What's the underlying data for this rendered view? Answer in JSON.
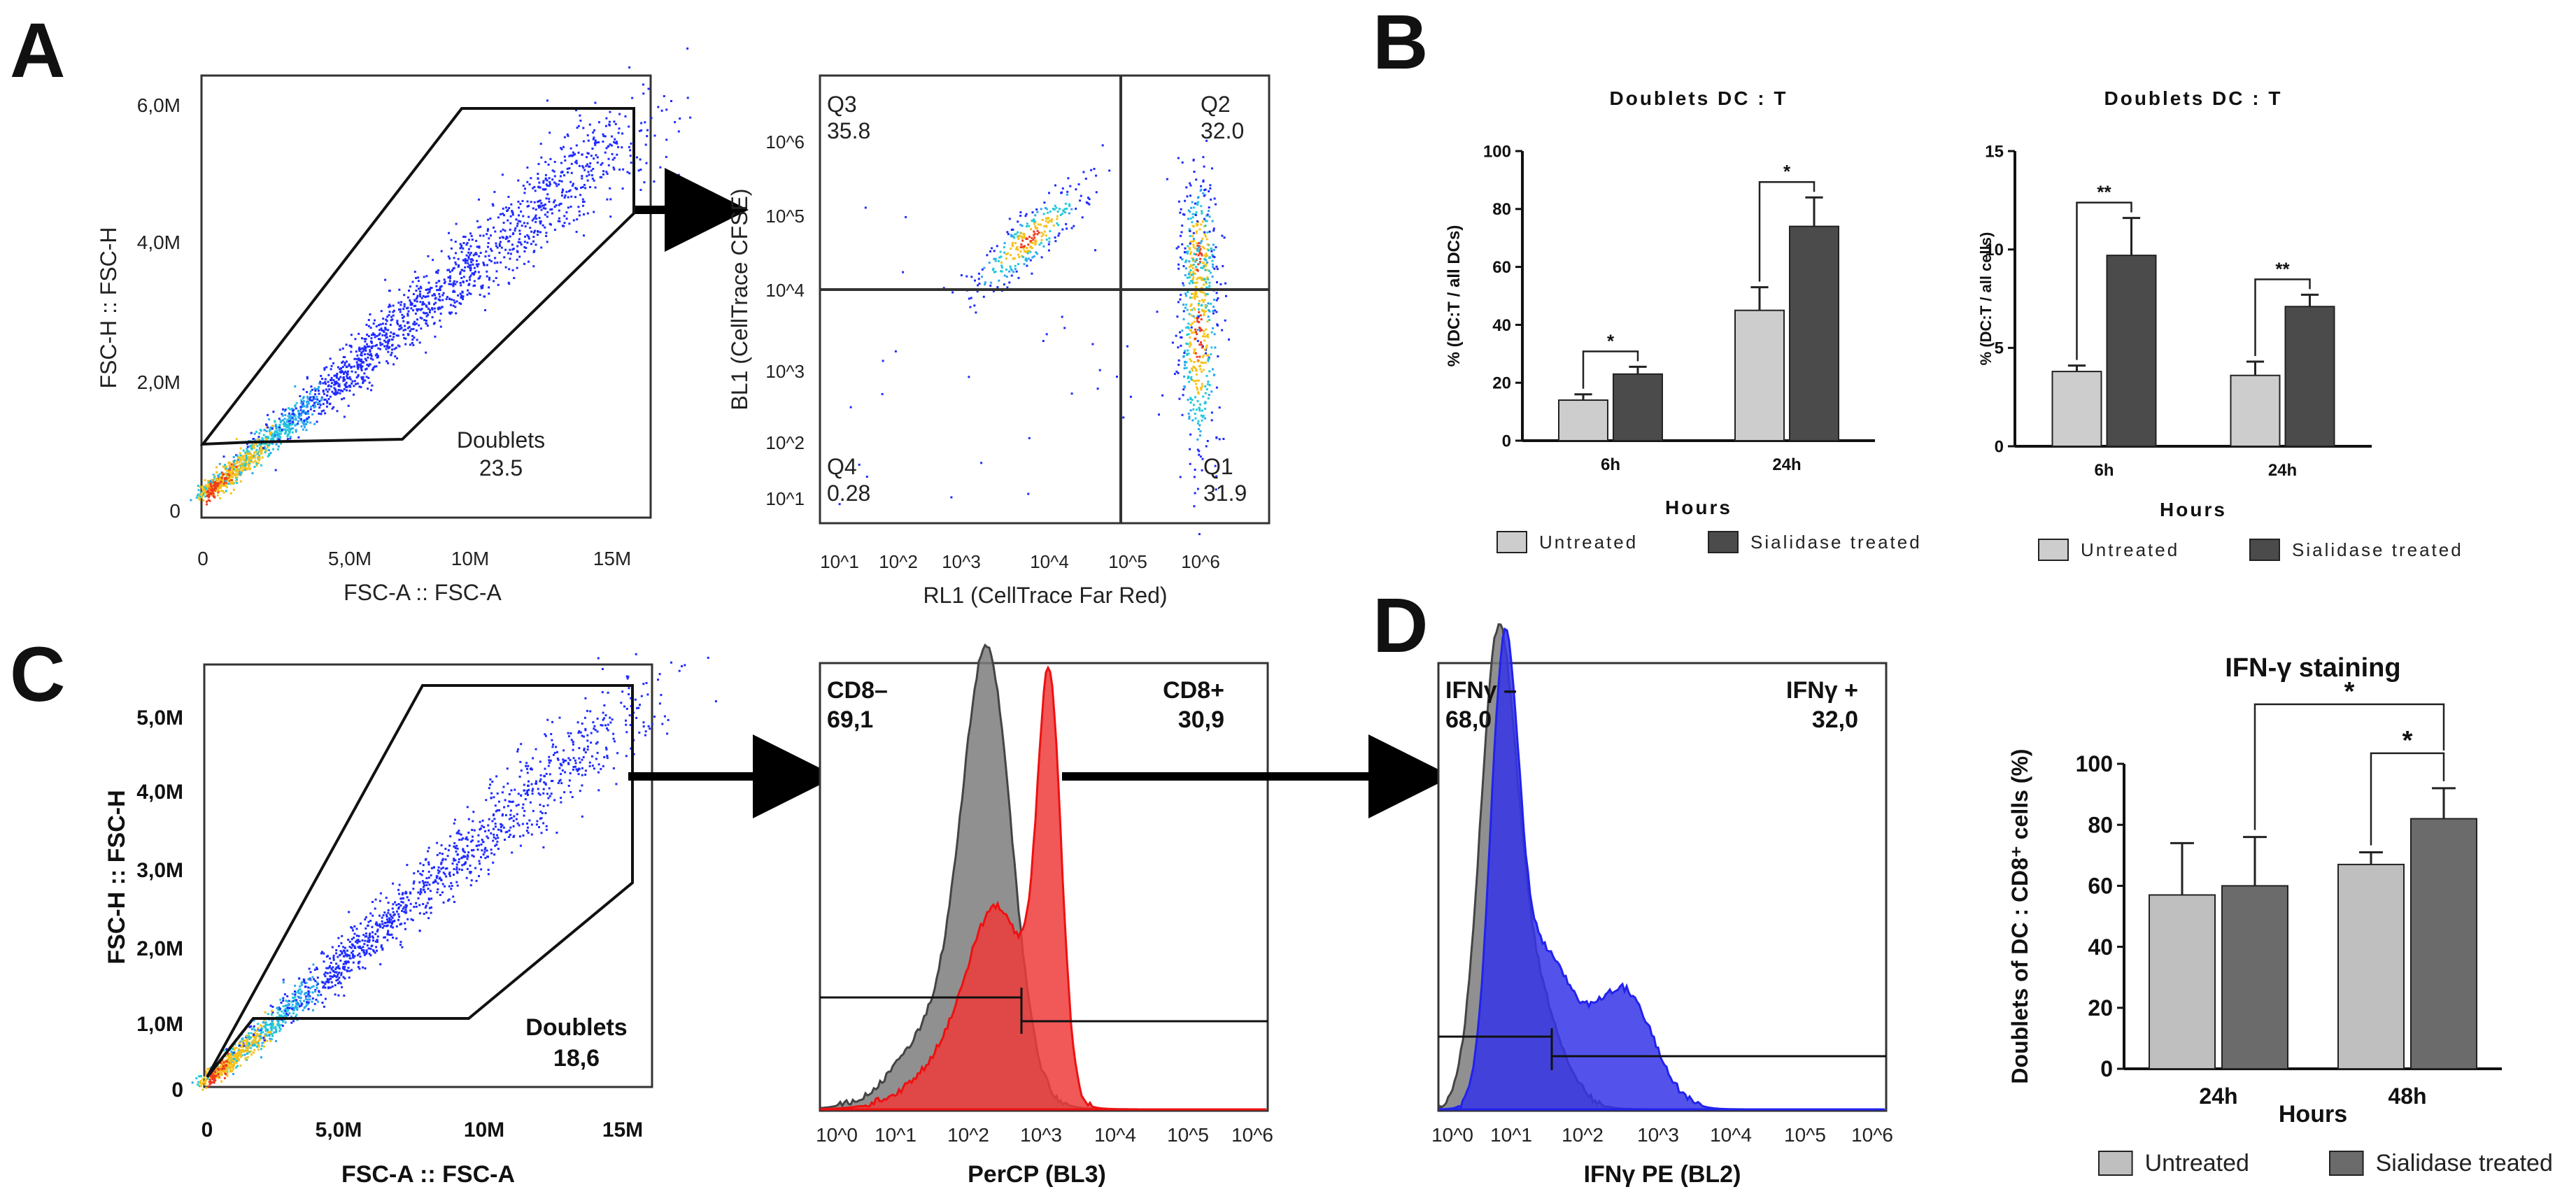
{
  "panels": {
    "A": "A",
    "B": "B",
    "C": "C",
    "D": "D"
  },
  "colors": {
    "density_low": "#1f2bff",
    "density_mid": "#23c9d8",
    "density_high": "#ee3a1f",
    "bar_light": "#cdcdcd",
    "bar_dark": "#4b4b4b",
    "bar_d_light": "#bfbfbf",
    "bar_d_dark": "#6b6b6b",
    "hist_gray": "#7d7d7d",
    "hist_red": "#ee3b3b",
    "hist_blue": "#3535e8"
  },
  "chart_data": [
    {
      "id": "A_scatter",
      "type": "scatter",
      "xlabel": "FSC-A :: FSC-A",
      "ylabel": "FSC-H :: FSC-H",
      "x_ticks": [
        "0",
        "5,0M",
        "10M",
        "15M"
      ],
      "y_ticks": [
        "0",
        "2,0M",
        "4,0M",
        "6,0M"
      ],
      "gate": {
        "name": "Doublets",
        "value": "23.5"
      }
    },
    {
      "id": "A_quadrant",
      "type": "scatter",
      "xlabel": "RL1 (CellTrace Far Red)",
      "ylabel": "BL1 (CellTrace CFSE)",
      "x_ticks": [
        "10^1",
        "10^2",
        "10^3",
        "10^4",
        "10^5",
        "10^6"
      ],
      "y_ticks": [
        "10^1",
        "10^2",
        "10^3",
        "10^4",
        "10^5",
        "10^6"
      ],
      "quadrants": [
        {
          "name": "Q3",
          "value": "35.8"
        },
        {
          "name": "Q2",
          "value": "32.0"
        },
        {
          "name": "Q4",
          "value": "0.28"
        },
        {
          "name": "Q1",
          "value": "31.9"
        }
      ]
    },
    {
      "id": "B_left",
      "type": "bar",
      "title": "Doublets DC : T",
      "xlabel": "Hours",
      "ylabel": "% (DC:T / all DCs)",
      "ylim": [
        0,
        100
      ],
      "y_ticks": [
        "0",
        "20",
        "40",
        "60",
        "80",
        "100"
      ],
      "categories": [
        "6h",
        "24h"
      ],
      "series": [
        {
          "name": "Untreated",
          "values": [
            14,
            45
          ],
          "errors": [
            2,
            8
          ]
        },
        {
          "name": "Sialidase treated",
          "values": [
            23,
            74
          ],
          "errors": [
            2.5,
            10
          ]
        }
      ],
      "significance": [
        "*",
        "*"
      ],
      "legend": [
        "Untreated",
        "Sialidase treated"
      ]
    },
    {
      "id": "B_right",
      "type": "bar",
      "title": "Doublets DC : T",
      "xlabel": "Hours",
      "ylabel": "% (DC:T / all cells)",
      "ylim": [
        0,
        15
      ],
      "y_ticks": [
        "0",
        "5",
        "10",
        "15"
      ],
      "categories": [
        "6h",
        "24h"
      ],
      "series": [
        {
          "name": "Untreated",
          "values": [
            3.8,
            3.6
          ],
          "errors": [
            0.3,
            0.7
          ]
        },
        {
          "name": "Sialidase treated",
          "values": [
            9.7,
            7.1
          ],
          "errors": [
            1.9,
            0.6
          ]
        }
      ],
      "significance": [
        "**",
        "**"
      ],
      "legend": [
        "Untreated",
        "Sialidase treated"
      ]
    },
    {
      "id": "C_scatter",
      "type": "scatter",
      "xlabel": "FSC-A :: FSC-A",
      "ylabel": "FSC-H :: FSC-H",
      "x_ticks": [
        "0",
        "5,0M",
        "10M",
        "15M"
      ],
      "y_ticks": [
        "0",
        "1,0M",
        "2,0M",
        "3,0M",
        "4,0M",
        "5,0M"
      ],
      "gate": {
        "name": "Doublets",
        "value": "18,6"
      }
    },
    {
      "id": "C_hist",
      "type": "area",
      "xlabel": "PerCP (BL3)",
      "x_ticks": [
        "10^0",
        "10^1",
        "10^2",
        "10^3",
        "10^4",
        "10^5",
        "10^6"
      ],
      "gates": [
        {
          "name": "CD8–",
          "value": "69,1"
        },
        {
          "name": "CD8+",
          "value": "30,9"
        }
      ]
    },
    {
      "id": "D_hist",
      "type": "area",
      "xlabel": "IFNγ PE (BL2)",
      "x_ticks": [
        "10^0",
        "10^1",
        "10^2",
        "10^3",
        "10^4",
        "10^5",
        "10^6"
      ],
      "gates": [
        {
          "name": "IFNγ –",
          "value": "68,0"
        },
        {
          "name": "IFNγ +",
          "value": "32,0"
        }
      ]
    },
    {
      "id": "D_bar",
      "type": "bar",
      "title": "IFN-γ staining",
      "xlabel": "Hours",
      "ylabel": "Doublets of DC : CD8⁺ cells (%)",
      "ylim": [
        0,
        100
      ],
      "y_ticks": [
        "0",
        "20",
        "40",
        "60",
        "80",
        "100"
      ],
      "categories": [
        "24h",
        "48h"
      ],
      "series": [
        {
          "name": "Untreated",
          "values": [
            57,
            67
          ],
          "errors": [
            17,
            4
          ]
        },
        {
          "name": "Sialidase treated",
          "values": [
            60,
            82
          ],
          "errors": [
            16,
            10
          ]
        }
      ],
      "significance": [
        "*",
        "*"
      ],
      "legend": [
        "Untreated",
        "Sialidase treated"
      ]
    }
  ]
}
